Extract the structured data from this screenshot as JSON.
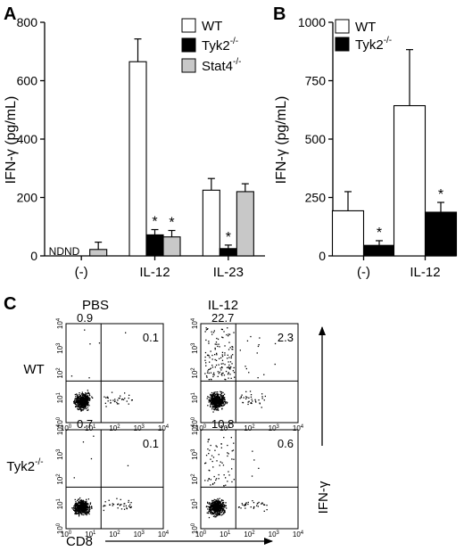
{
  "chart_data": [
    {
      "panel_label": "A",
      "type": "bar",
      "ylabel_main": "IFN-",
      "ylabel_greek": "γ",
      "ylabel_unit": " (pg/mL)",
      "ylim": [
        0,
        800
      ],
      "yticks": [
        0,
        200,
        400,
        600,
        800
      ],
      "categories": [
        "(-)",
        "IL-12",
        "IL-23"
      ],
      "series": [
        {
          "name": "WT",
          "sup": "",
          "fill": "#ffffff",
          "values": [
            null,
            665,
            225
          ],
          "errors": [
            null,
            78,
            40
          ]
        },
        {
          "name": "Tyk2",
          "sup": "-/-",
          "fill": "#000000",
          "values": [
            null,
            72,
            25
          ],
          "errors": [
            null,
            18,
            12
          ]
        },
        {
          "name": "Stat4",
          "sup": "-/-",
          "fill": "#c8c8c8",
          "values": [
            22,
            65,
            220
          ],
          "errors": [
            25,
            22,
            27
          ]
        }
      ],
      "annotations": {
        "nd_text": "NDND",
        "star": "*",
        "stars": [
          [
            1,
            1
          ],
          [
            1,
            2
          ],
          [
            2,
            1
          ]
        ]
      }
    },
    {
      "panel_label": "B",
      "type": "bar",
      "ylabel_main": "IFN-",
      "ylabel_greek": "γ",
      "ylabel_unit": " (pg/mL)",
      "ylim": [
        0,
        1000
      ],
      "yticks": [
        0,
        250,
        500,
        750,
        1000
      ],
      "categories": [
        "(-)",
        "IL-12"
      ],
      "series": [
        {
          "name": "WT",
          "sup": "",
          "fill": "#ffffff",
          "values": [
            193,
            643
          ],
          "errors": [
            82,
            240
          ]
        },
        {
          "name": "Tyk2",
          "sup": "-/-",
          "fill": "#000000",
          "values": [
            45,
            187
          ],
          "errors": [
            20,
            42
          ]
        }
      ],
      "annotations": {
        "star": "*",
        "stars": [
          [
            0,
            1
          ],
          [
            1,
            1
          ]
        ]
      }
    },
    {
      "panel_label": "C",
      "type": "scatter",
      "columns": [
        "PBS",
        "IL-12"
      ],
      "rows": [
        {
          "name": "WT",
          "sup": ""
        },
        {
          "name": "Tyk2",
          "sup": "-/-"
        }
      ],
      "quadrant_values": [
        [
          {
            "upper_left": "0.9",
            "upper_right": "0.1"
          },
          {
            "upper_left": "22.7",
            "upper_right": "2.3"
          }
        ],
        [
          {
            "upper_left": "0.7",
            "upper_right": "0.1"
          },
          {
            "upper_left": "10.8",
            "upper_right": "0.6"
          }
        ]
      ],
      "log_axes": true,
      "tick_exponents": [
        "0",
        "1",
        "2",
        "3",
        "4"
      ],
      "xlabel": "CD8",
      "ylabel": "IFN-γ"
    }
  ]
}
